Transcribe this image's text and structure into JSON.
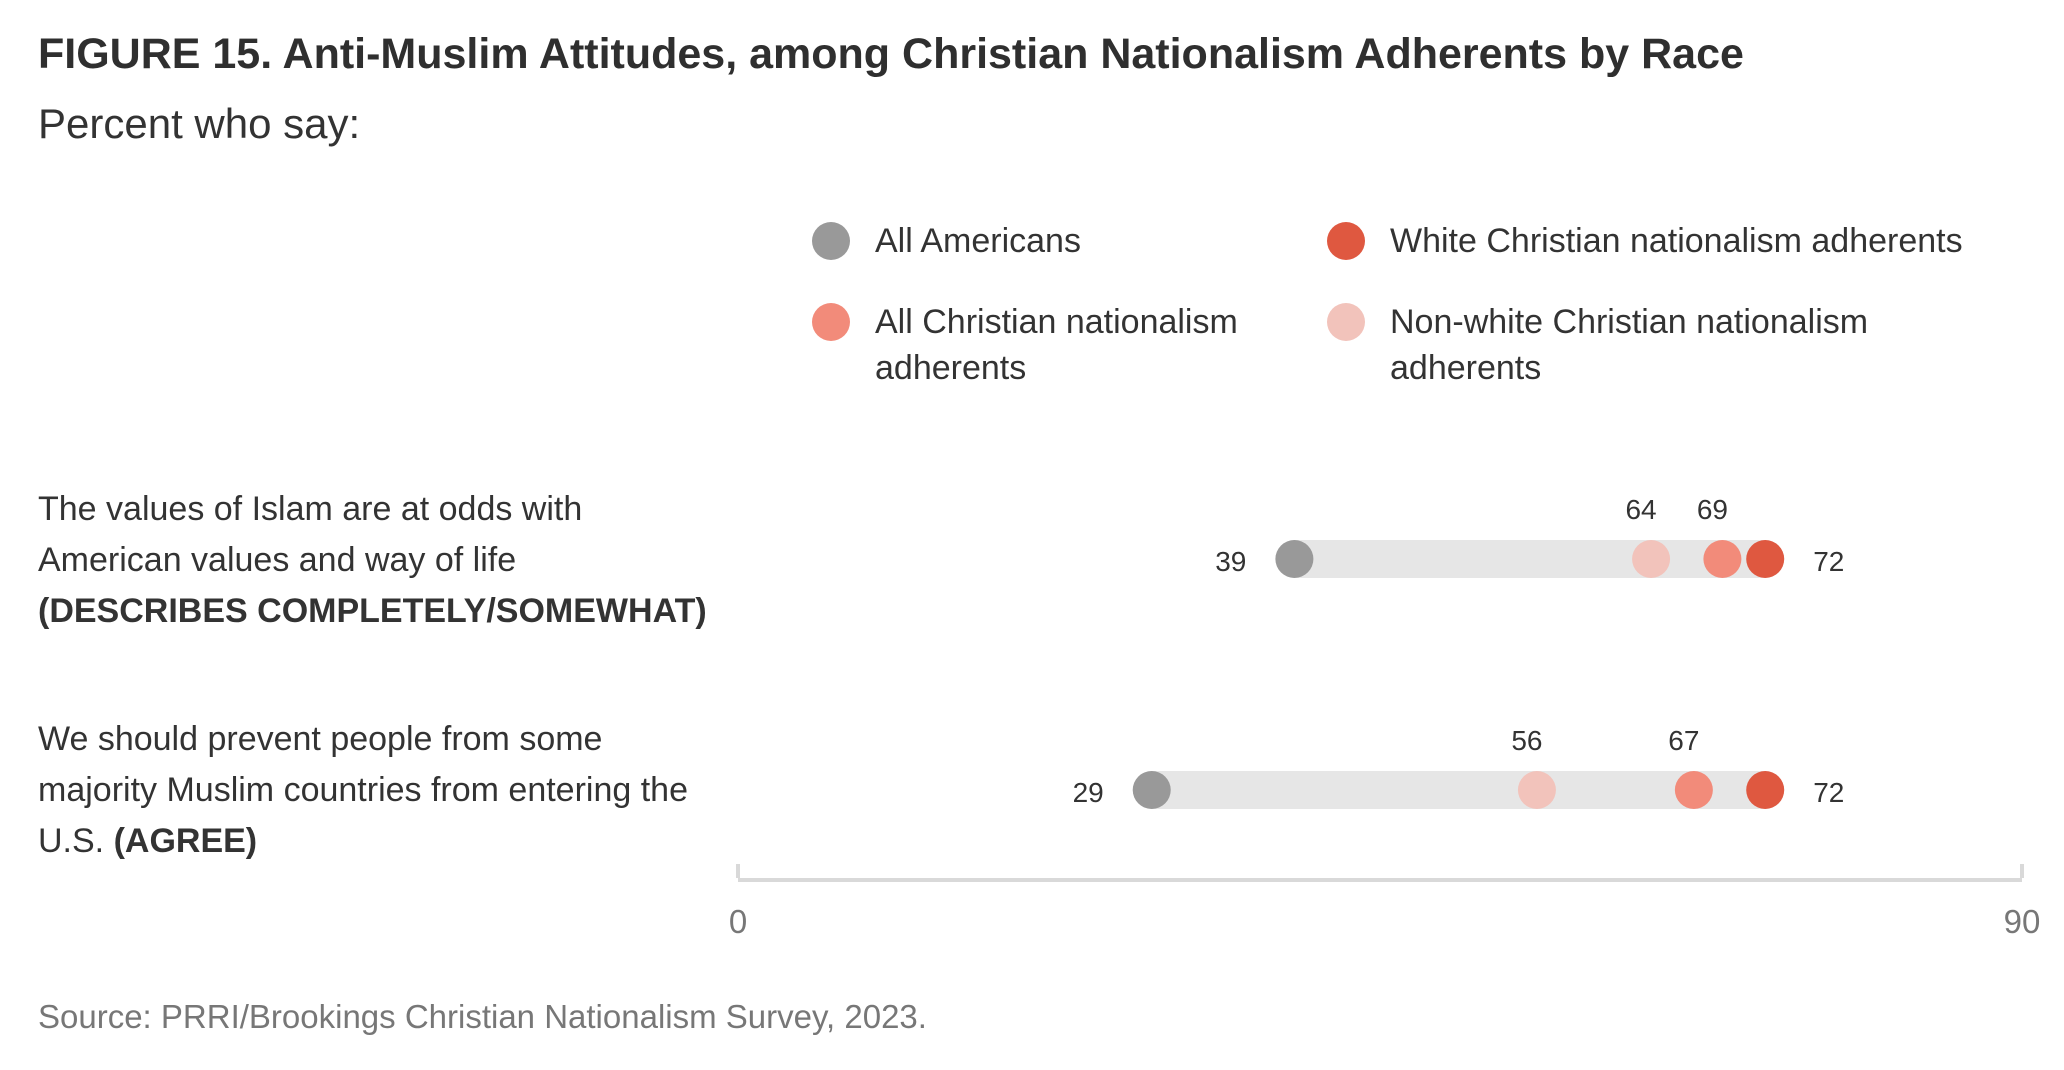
{
  "title": "FIGURE 15.  Anti-Muslim Attitudes, among Christian Nationalism Adherents by Race",
  "subtitle": "Percent who say:",
  "source": "Source: PRRI/Brookings Christian Nationalism Survey, 2023.",
  "colors": {
    "all_americans": "#999999",
    "all_cn": "#F28B7A",
    "white_cn": "#DF5840",
    "nonwhite_cn": "#F2C3BB",
    "track": "#E6E6E6",
    "axis": "#D9D9D9"
  },
  "legend": [
    {
      "key": "all_americans",
      "label": "All Americans"
    },
    {
      "key": "white_cn",
      "label": "White Christian nationalism adherents"
    },
    {
      "key": "all_cn",
      "label": "All Christian nationalism adherents"
    },
    {
      "key": "nonwhite_cn",
      "label": "Non-white Christian nationalism adherents"
    }
  ],
  "questions": [
    {
      "text": "The values of Islam are at odds with American values and way of life ",
      "qualifier": "(DESCRIBES COMPLETELY/SOMEWHAT)"
    },
    {
      "text": "We should prevent people from some majority Muslim countries from entering the U.S. ",
      "qualifier": "(AGREE)"
    }
  ],
  "chart_data": {
    "type": "dot-range",
    "xlim": [
      0,
      90
    ],
    "tick_labels": [
      "0",
      "90"
    ],
    "categories": [
      "The values of Islam are at odds with American values and way of life (DESCRIBES COMPLETELY/SOMEWHAT)",
      "We should prevent people from some majority Muslim countries from entering the U.S. (AGREE)"
    ],
    "series": [
      {
        "key": "all_americans",
        "name": "All Americans",
        "values": [
          39,
          29
        ]
      },
      {
        "key": "nonwhite_cn",
        "name": "Non-white Christian nationalism adherents",
        "values": [
          64,
          56
        ]
      },
      {
        "key": "all_cn",
        "name": "All Christian nationalism adherents",
        "values": [
          69,
          67
        ]
      },
      {
        "key": "white_cn",
        "name": "White Christian nationalism adherents",
        "values": [
          72,
          72
        ]
      }
    ]
  }
}
